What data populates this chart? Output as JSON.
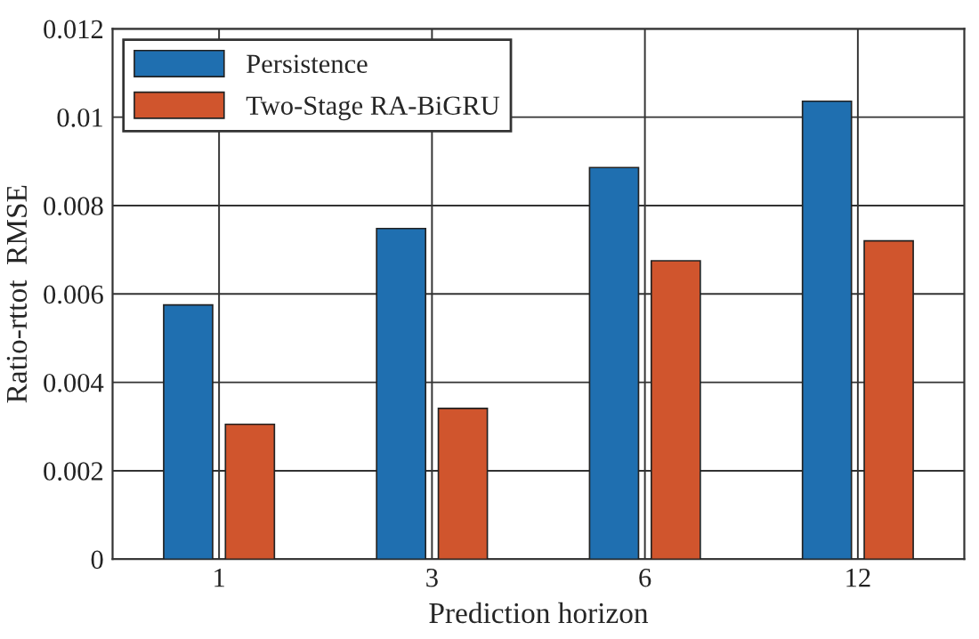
{
  "chart_data": {
    "type": "bar",
    "xlabel": "Prediction horizon",
    "ylabel": "Ratio-rttot  RMSE",
    "categories": [
      "1",
      "3",
      "6",
      "12"
    ],
    "series": [
      {
        "name": "Persistence",
        "color": "#1f6fb0",
        "values": [
          0.00575,
          0.00748,
          0.00886,
          0.01036
        ]
      },
      {
        "name": "Two-Stage RA-BiGRU",
        "color": "#d0552d",
        "values": [
          0.00305,
          0.00341,
          0.00675,
          0.0072
        ]
      }
    ],
    "ylim": [
      0,
      0.012
    ],
    "yticks": [
      0,
      0.002,
      0.004,
      0.006,
      0.008,
      0.01,
      0.012
    ],
    "grid": true,
    "legend": "top left"
  }
}
